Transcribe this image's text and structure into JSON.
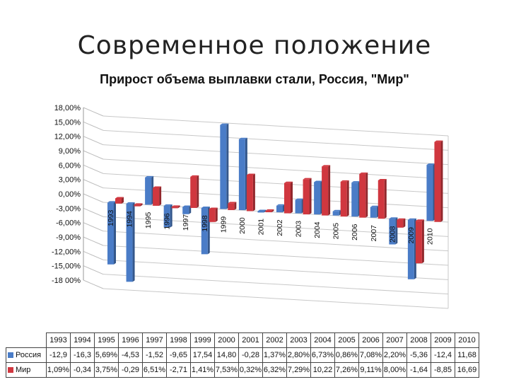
{
  "title": "Современное положение",
  "chart_title": "Прирост объема выплавки стали, Россия, \"Мир\"",
  "colors": {
    "russia": "#4a7cc7",
    "world": "#d0373f"
  },
  "chart_data": {
    "type": "bar",
    "title": "Прирост объема выплавки стали, Россия, \"Мир\"",
    "categories": [
      "1993",
      "1994",
      "1995",
      "1996",
      "1997",
      "1998",
      "1999",
      "2000",
      "2001",
      "2002",
      "2003",
      "2004",
      "2005",
      "2006",
      "2007",
      "2008",
      "2009",
      "2010"
    ],
    "series": [
      {
        "name": "Россия",
        "values": [
          -12.9,
          -16.3,
          5.69,
          -4.53,
          -1.52,
          -9.65,
          17.54,
          14.8,
          -0.28,
          1.37,
          2.8,
          6.73,
          0.86,
          7.08,
          2.2,
          -5.36,
          -12.4,
          11.68
        ]
      },
      {
        "name": "Мир",
        "values": [
          1.09,
          -0.34,
          3.75,
          -0.29,
          6.51,
          -2.71,
          1.41,
          7.53,
          0.32,
          6.32,
          7.29,
          10.22,
          7.26,
          9.11,
          8.0,
          -1.64,
          -8.85,
          16.69
        ]
      }
    ],
    "y_ticks": [
      "18,00%",
      "15,00%",
      "12,00%",
      "9,00%",
      "6,00%",
      "3,00%",
      "0,00%",
      "-3,00%",
      "-6,00%",
      "-9,00%",
      "-12,00%",
      "-15,00%",
      "-18 00%"
    ],
    "ylim": [
      -18,
      18
    ],
    "grid": true,
    "legend": "data table below chart"
  },
  "table": {
    "years": [
      "1993",
      "1994",
      "1995",
      "1996",
      "1997",
      "1998",
      "1999",
      "2000",
      "2001",
      "2002",
      "2003",
      "2004",
      "2005",
      "2006",
      "2007",
      "2008",
      "2009",
      "2010"
    ],
    "rows": [
      {
        "label": "Россия",
        "cells": [
          "-12,9",
          "-16,3",
          "5,69%",
          "-4,53",
          "-1,52",
          "-9,65",
          "17,54",
          "14,80",
          "-0,28",
          "1,37%",
          "2,80%",
          "6,73%",
          "0,86%",
          "7,08%",
          "2,20%",
          "-5,36",
          "-12,4",
          "11,68"
        ]
      },
      {
        "label": "Мир",
        "cells": [
          "1,09%",
          "-0,34",
          "3,75%",
          "-0,29",
          "6,51%",
          "-2,71",
          "1,41%",
          "7,53%",
          "0,32%",
          "6,32%",
          "7,29%",
          "10,22",
          "7,26%",
          "9,11%",
          "8,00%",
          "-1,64",
          "-8,85",
          "16,69"
        ]
      }
    ]
  }
}
